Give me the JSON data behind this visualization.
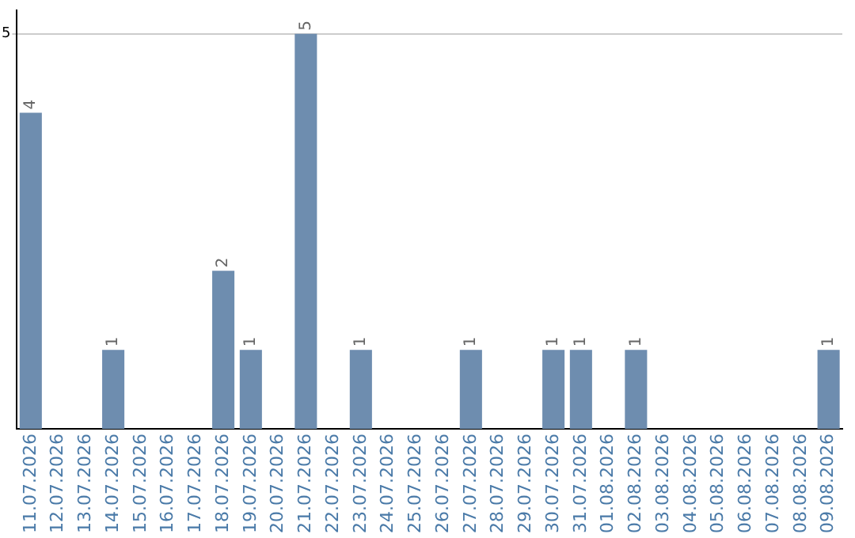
{
  "chart_data": {
    "type": "bar",
    "categories": [
      "11.07.2026",
      "12.07.2026",
      "13.07.2026",
      "14.07.2026",
      "15.07.2026",
      "16.07.2026",
      "17.07.2026",
      "18.07.2026",
      "19.07.2026",
      "20.07.2026",
      "21.07.2026",
      "22.07.2026",
      "23.07.2026",
      "24.07.2026",
      "25.07.2026",
      "26.07.2026",
      "27.07.2026",
      "28.07.2026",
      "29.07.2026",
      "30.07.2026",
      "31.07.2026",
      "01.08.2026",
      "02.08.2026",
      "03.08.2026",
      "04.08.2026",
      "05.08.2026",
      "06.08.2026",
      "07.08.2026",
      "08.08.2026",
      "09.08.2026"
    ],
    "values": [
      4,
      0,
      0,
      1,
      0,
      0,
      0,
      2,
      1,
      0,
      5,
      0,
      1,
      0,
      0,
      0,
      1,
      0,
      0,
      1,
      1,
      0,
      1,
      0,
      0,
      0,
      0,
      0,
      0,
      1
    ],
    "value_labels": [
      "4",
      null,
      null,
      "1",
      null,
      null,
      null,
      "2",
      "1",
      null,
      "5",
      null,
      "1",
      null,
      null,
      null,
      "1",
      null,
      null,
      "1",
      "1",
      null,
      "1",
      null,
      null,
      null,
      null,
      null,
      null,
      "1"
    ],
    "color": "#6e8daf",
    "ylim": [
      0,
      5.3
    ],
    "yticks": [
      5
    ],
    "grid": "y"
  }
}
